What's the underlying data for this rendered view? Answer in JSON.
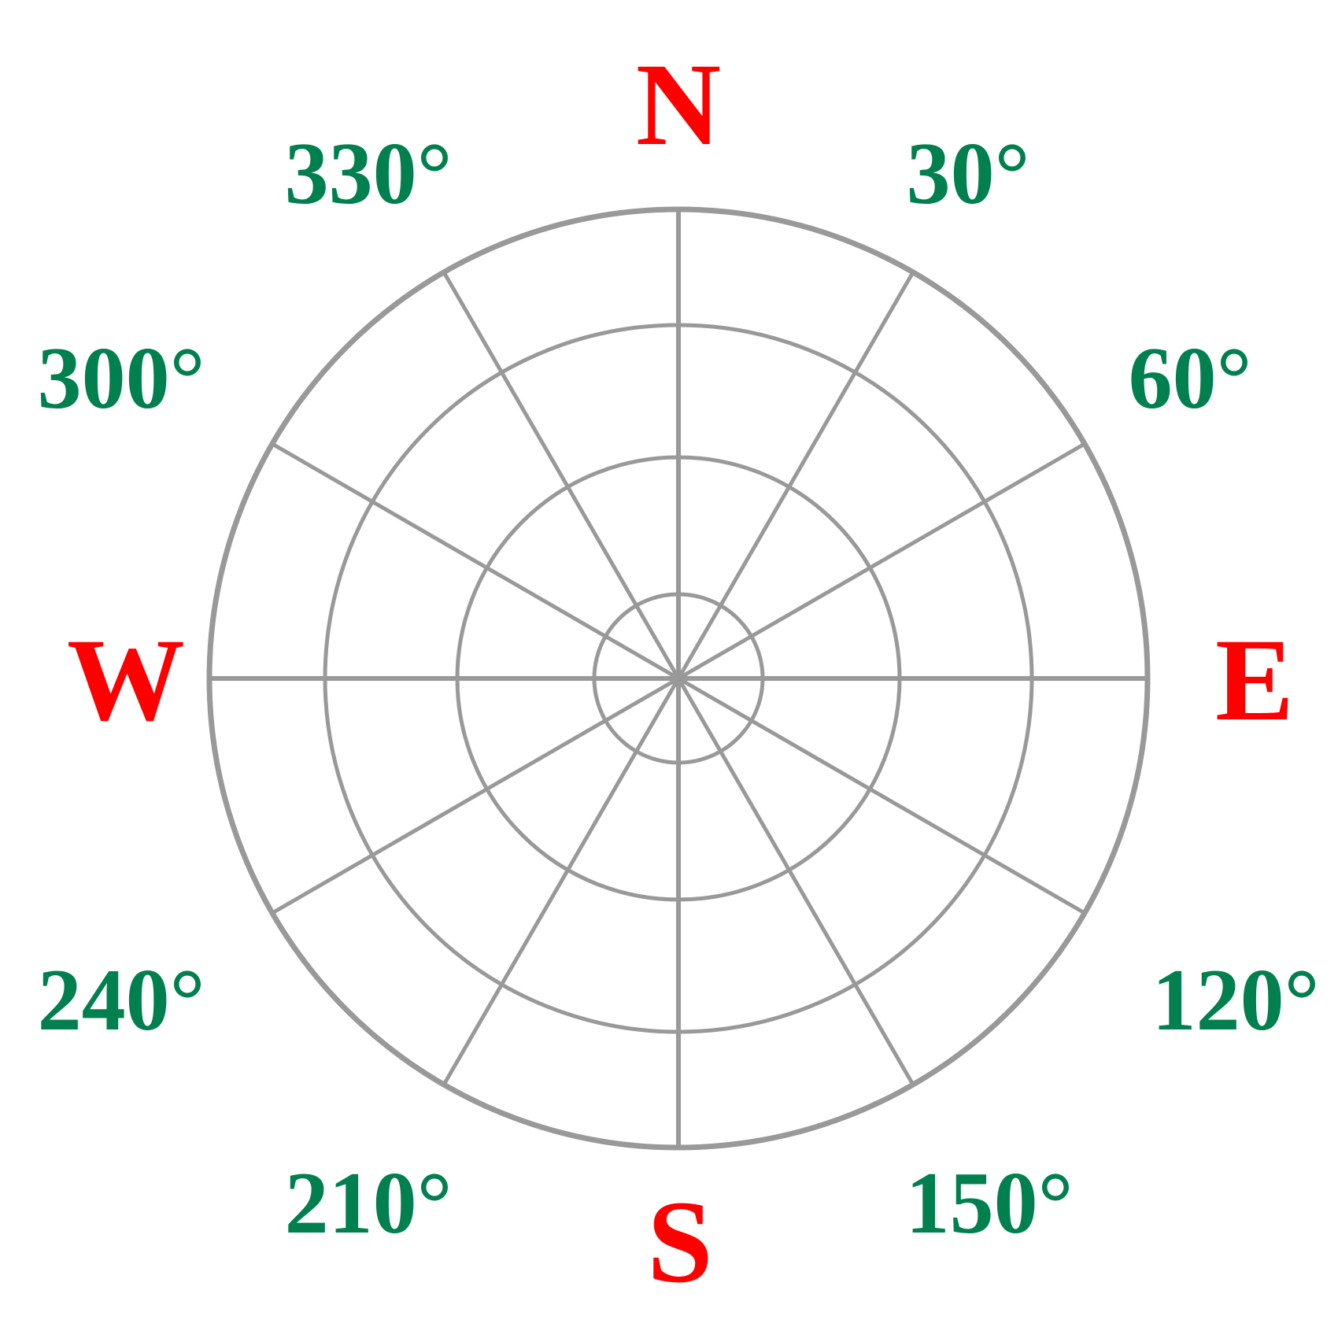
{
  "colors": {
    "cardinal": "#ff0000",
    "degree": "#00804f",
    "grid": "#999999",
    "background": "#ffffff"
  },
  "cardinals": {
    "north": "N",
    "east": "E",
    "south": "S",
    "west": "W"
  },
  "degrees": {
    "d30": "30°",
    "d60": "60°",
    "d120": "120°",
    "d150": "150°",
    "d210": "210°",
    "d240": "240°",
    "d300": "300°",
    "d330": "330°"
  },
  "grid": {
    "rings": 4,
    "spoke_step_degrees": 30
  }
}
